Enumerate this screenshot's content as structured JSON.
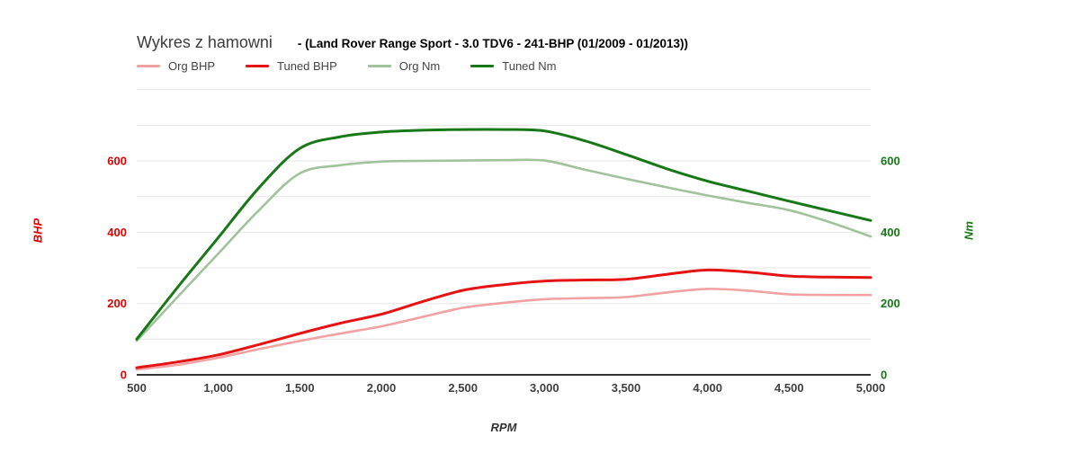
{
  "title": {
    "main": "Wykres z hamowni",
    "sub": "- (Land Rover Range Sport - 3.0 TDV6 - 241-BHP (01/2009 - 01/2013))"
  },
  "legend": {
    "items": [
      {
        "label": "Org BHP",
        "color": "#f2a2a2"
      },
      {
        "label": "Tuned BHP",
        "color": "#e51313"
      },
      {
        "label": "Org Nm",
        "color": "#a1c39b"
      },
      {
        "label": "Tuned Nm",
        "color": "#177817"
      }
    ]
  },
  "axes": {
    "left": {
      "title": "BHP",
      "color": "#e00000",
      "tick_values": [
        0,
        200,
        400,
        600
      ]
    },
    "right": {
      "title": "Nm",
      "color": "#177817",
      "tick_values": [
        0,
        200,
        400,
        600
      ]
    },
    "x": {
      "title": "RPM",
      "color": "#333333",
      "tick_labels": [
        "500",
        "1,000",
        "1,500",
        "2,000",
        "2,500",
        "3,000",
        "3,500",
        "4,000",
        "4,500",
        "5,000"
      ],
      "tick_values": [
        500,
        1000,
        1500,
        2000,
        2500,
        3000,
        3500,
        4000,
        4500,
        5000
      ]
    }
  },
  "chart_data": {
    "type": "line",
    "title": "Wykres z hamowni - (Land Rover Range Sport - 3.0 TDV6 - 241-BHP (01/2009 - 01/2013))",
    "xlabel": "RPM",
    "ylabel_left": "BHP",
    "ylabel_right": "Nm",
    "xlim": [
      500,
      5000
    ],
    "ylim": [
      0,
      800
    ],
    "grid": true,
    "grid_values": [
      100,
      200,
      300,
      400,
      500,
      600,
      700,
      800
    ],
    "legend_position": "top-left",
    "x": [
      500,
      750,
      1000,
      1250,
      1500,
      1750,
      2000,
      2250,
      2500,
      2750,
      3000,
      3250,
      3500,
      3750,
      4000,
      4250,
      4500,
      4750,
      5000
    ],
    "series": [
      {
        "name": "Org BHP",
        "axis": "left",
        "color": "#f2a2a2",
        "width": 2.6,
        "values": [
          15,
          28,
          48,
          72,
          95,
          116,
          136,
          162,
          188,
          202,
          212,
          215,
          218,
          231,
          241,
          236,
          226,
          224,
          224
        ]
      },
      {
        "name": "Tuned BHP",
        "axis": "left",
        "color": "#e51313",
        "width": 3,
        "values": [
          20,
          36,
          56,
          85,
          116,
          145,
          170,
          205,
          237,
          253,
          263,
          266,
          268,
          282,
          294,
          288,
          277,
          274,
          273
        ]
      },
      {
        "name": "Org Nm",
        "axis": "right",
        "color": "#a1c39b",
        "width": 2.6,
        "values": [
          95,
          218,
          340,
          462,
          565,
          588,
          598,
          600,
          601,
          602,
          601,
          575,
          550,
          526,
          503,
          482,
          462,
          428,
          388
        ]
      },
      {
        "name": "Tuned Nm",
        "axis": "right",
        "color": "#177817",
        "width": 3,
        "values": [
          100,
          245,
          385,
          525,
          635,
          668,
          681,
          686,
          688,
          688,
          684,
          656,
          618,
          578,
          543,
          515,
          487,
          460,
          433
        ]
      }
    ]
  },
  "colors": {
    "grid": "#e6e6e6",
    "axis_line": "#333333",
    "x_tick": "#404040"
  }
}
